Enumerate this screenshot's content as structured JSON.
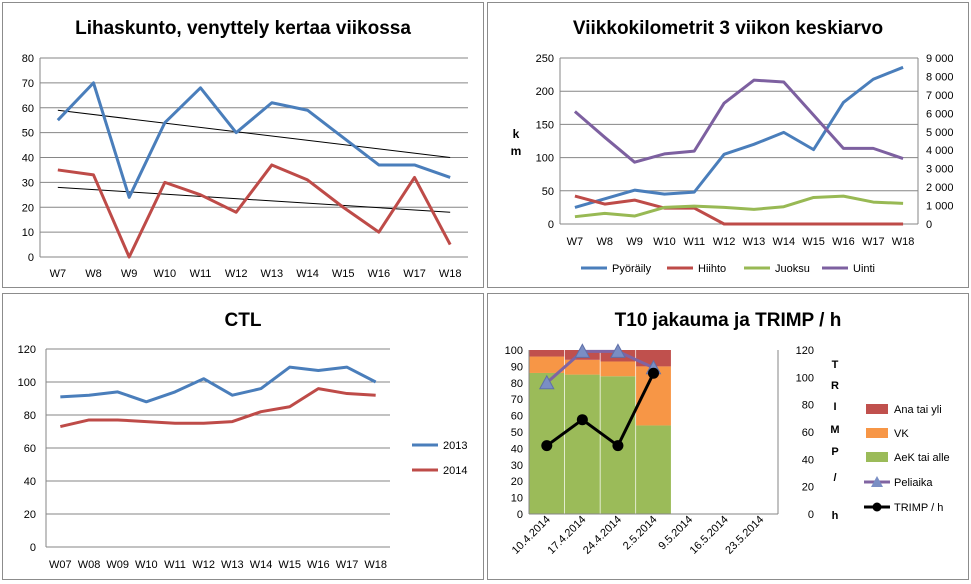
{
  "chart_data": [
    {
      "type": "line",
      "title": "Lihaskunto, venyttely kertaa viikossa",
      "categories": [
        "W7",
        "W8",
        "W9",
        "W10",
        "W11",
        "W12",
        "W13",
        "W14",
        "W15",
        "W16",
        "W17",
        "W18"
      ],
      "ylim": [
        0,
        80
      ],
      "yticks": [
        "0",
        "10",
        "20",
        "30",
        "40",
        "50",
        "60",
        "70",
        "80"
      ],
      "grid": true,
      "legend": "none",
      "series": [
        {
          "color": "#4a7ebb",
          "values": [
            55,
            70,
            24,
            54,
            68,
            50,
            62,
            59,
            48,
            37,
            37,
            32
          ]
        },
        {
          "color": "#be4b48",
          "values": [
            35,
            33,
            0,
            30,
            25,
            18,
            37,
            31,
            20,
            10,
            32,
            5
          ]
        }
      ],
      "trendlines": [
        {
          "color": "#000000",
          "from": [
            1,
            59
          ],
          "to": [
            12,
            40
          ]
        },
        {
          "color": "#000000",
          "from": [
            1,
            28
          ],
          "to": [
            12,
            18
          ]
        }
      ]
    },
    {
      "type": "line",
      "title": "Viikkokilometrit 3 viikon keskiarvo",
      "ylabel": "k m",
      "categories": [
        "W7",
        "W8",
        "W9",
        "W10",
        "W11",
        "W12",
        "W13",
        "W14",
        "W15",
        "W16",
        "W17",
        "W18"
      ],
      "ylim": [
        0,
        250
      ],
      "yticks": [
        "0",
        "50",
        "100",
        "150",
        "200",
        "250"
      ],
      "y2lim": [
        0,
        9000
      ],
      "y2ticks": [
        "0",
        "1 000",
        "2 000",
        "3 000",
        "4 000",
        "5 000",
        "6 000",
        "7 000",
        "8 000",
        "9 000"
      ],
      "grid": true,
      "legend": "bottom",
      "series": [
        {
          "name": "Pyöräily",
          "axis": "left",
          "color": "#4a7ebb",
          "values": [
            25,
            38,
            51,
            45,
            48,
            105,
            120,
            138,
            112,
            183,
            218,
            236
          ]
        },
        {
          "name": "Hiihto",
          "axis": "left",
          "color": "#be4b48",
          "values": [
            42,
            30,
            36,
            24,
            24,
            0,
            0,
            0,
            0,
            0,
            0,
            0
          ]
        },
        {
          "name": "Juoksu",
          "axis": "left",
          "color": "#98b954",
          "values": [
            11,
            16,
            12,
            25,
            27,
            25,
            22,
            26,
            40,
            42,
            33,
            31
          ]
        },
        {
          "name": "Uinti",
          "axis": "right",
          "color": "#7d60a0",
          "values": [
            6100,
            4700,
            3350,
            3800,
            3950,
            6550,
            7800,
            7700,
            5900,
            4100,
            4100,
            3550
          ]
        }
      ]
    },
    {
      "type": "line",
      "title": "CTL",
      "categories": [
        "W07",
        "W08",
        "W09",
        "W10",
        "W11",
        "W12",
        "W13",
        "W14",
        "W15",
        "W16",
        "W17",
        "W18"
      ],
      "ylim": [
        0,
        120
      ],
      "yticks": [
        "0",
        "20",
        "40",
        "60",
        "80",
        "100",
        "120"
      ],
      "grid": true,
      "legend": "right",
      "series": [
        {
          "name": "2013",
          "color": "#4a7ebb",
          "values": [
            91,
            92,
            94,
            88,
            94,
            102,
            92,
            96,
            109,
            107,
            109,
            100
          ]
        },
        {
          "name": "2014",
          "color": "#be4b48",
          "values": [
            73,
            77,
            77,
            76,
            75,
            75,
            76,
            82,
            85,
            96,
            93,
            92
          ]
        }
      ]
    },
    {
      "type": "bar",
      "stacked": true,
      "title": "T10 jakauma ja TRIMP / h",
      "y2label": "T R I M P / h",
      "categories": [
        "10.4.2014",
        "17.4.2014",
        "24.4.2014",
        "2.5.2014",
        "9.5.2014",
        "16.5.2014",
        "23.5.2014"
      ],
      "ylim": [
        0,
        100
      ],
      "yticks": [
        "0",
        "10",
        "20",
        "30",
        "40",
        "50",
        "60",
        "70",
        "80",
        "90",
        "100"
      ],
      "y2lim": [
        0,
        120
      ],
      "y2ticks": [
        "0",
        "20",
        "40",
        "60",
        "80",
        "100",
        "120"
      ],
      "grid": false,
      "legend": "right",
      "series": [
        {
          "name": "Ana tai yli",
          "kind": "bar",
          "color": "#c0504d",
          "values": [
            4,
            6,
            7,
            10,
            null,
            null,
            null
          ]
        },
        {
          "name": "VK",
          "kind": "bar",
          "color": "#f79646",
          "values": [
            10,
            9,
            9,
            36,
            null,
            null,
            null
          ]
        },
        {
          "name": "AeK tai alle",
          "kind": "bar",
          "color": "#9bbb59",
          "values": [
            86,
            85,
            84,
            54,
            null,
            null,
            null
          ]
        },
        {
          "name": "Peliaika",
          "kind": "line",
          "axis": "right",
          "color": "#8064a2",
          "values": [
            96,
            119,
            119,
            107,
            null,
            null,
            null
          ]
        },
        {
          "name": "TRIMP / h",
          "kind": "line",
          "axis": "right",
          "color": "#000000",
          "values": [
            50,
            69,
            50,
            103,
            null,
            null,
            null
          ]
        }
      ]
    }
  ]
}
